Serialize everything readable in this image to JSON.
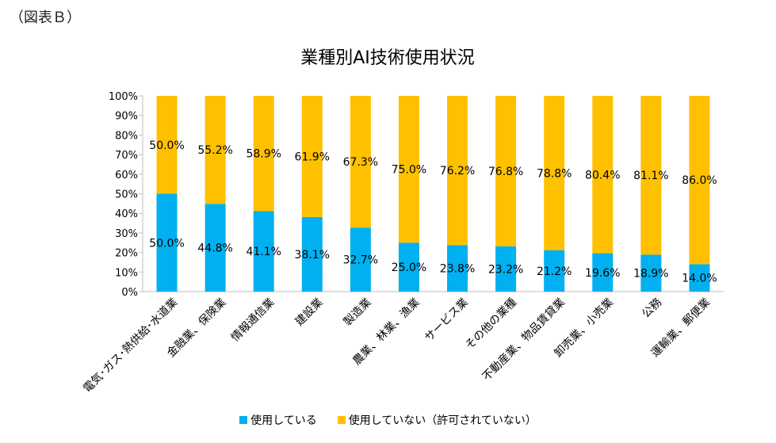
{
  "figure_label": "（図表Ｂ）",
  "chart_data": {
    "type": "bar",
    "stacked": true,
    "percent": true,
    "title": "業種別AI技術使用状況",
    "xlabel": "",
    "ylabel": "",
    "ylim": [
      0,
      100
    ],
    "yticks": [
      "0%",
      "10%",
      "20%",
      "30%",
      "40%",
      "50%",
      "60%",
      "70%",
      "80%",
      "90%",
      "100%"
    ],
    "grid": false,
    "legend_position": "bottom",
    "categories": [
      "電気･ガス･熱供給･水道業",
      "金融業、保険業",
      "情報通信業",
      "建設業",
      "製造業",
      "農業、林業、漁業",
      "サービス業",
      "その他の業種",
      "不動産業、物品賃貸業",
      "卸売業、小売業",
      "公務",
      "運輸業、郵便業"
    ],
    "series": [
      {
        "name": "使用している",
        "color": "#00B0F0",
        "values": [
          50.0,
          44.8,
          41.1,
          38.1,
          32.7,
          25.0,
          23.8,
          23.2,
          21.2,
          19.6,
          18.9,
          14.0
        ],
        "labels": [
          "50.0%",
          "44.8%",
          "41.1%",
          "38.1%",
          "32.7%",
          "25.0%",
          "23.8%",
          "23.2%",
          "21.2%",
          "19.6%",
          "18.9%",
          "14.0%"
        ]
      },
      {
        "name": "使用していない（許可されていない）",
        "color": "#FFC000",
        "values": [
          50.0,
          55.2,
          58.9,
          61.9,
          67.3,
          75.0,
          76.2,
          76.8,
          78.8,
          80.4,
          81.1,
          86.0
        ],
        "labels": [
          "50.0%",
          "55.2%",
          "58.9%",
          "61.9%",
          "67.3%",
          "75.0%",
          "76.2%",
          "76.8%",
          "78.8%",
          "80.4%",
          "81.1%",
          "86.0%"
        ]
      }
    ]
  }
}
